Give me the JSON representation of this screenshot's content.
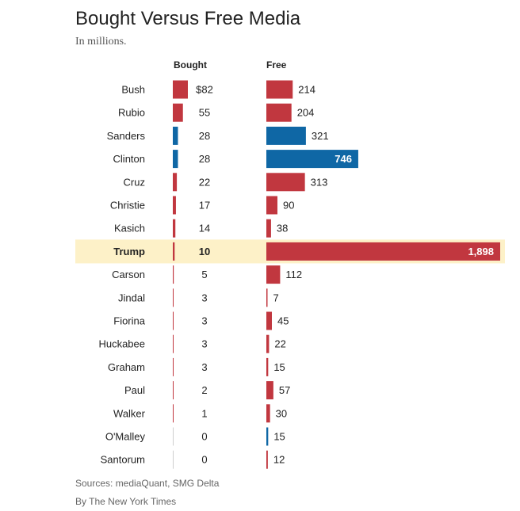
{
  "title": "Bought Versus Free Media",
  "subtitle": "In millions.",
  "footer": {
    "sources": "Sources: mediaQuant, SMG Delta",
    "byline": "By The New York Times"
  },
  "colors": {
    "republican": "#c1373f",
    "democrat": "#0f67a5",
    "highlight": "#fdf1c8"
  },
  "chart_data": {
    "type": "bar",
    "highlight": "Trump",
    "column_labels": {
      "bought": "Bought",
      "free": "Free"
    },
    "categories": [
      "Bush",
      "Rubio",
      "Sanders",
      "Clinton",
      "Cruz",
      "Christie",
      "Kasich",
      "Trump",
      "Carson",
      "Jindal",
      "Fiorina",
      "Huckabee",
      "Graham",
      "Paul",
      "Walker",
      "O'Malley",
      "Santorum"
    ],
    "party": [
      "R",
      "R",
      "D",
      "D",
      "R",
      "R",
      "R",
      "R",
      "R",
      "R",
      "R",
      "R",
      "R",
      "R",
      "R",
      "D",
      "R"
    ],
    "series": [
      {
        "name": "Bought",
        "values": [
          82,
          55,
          28,
          28,
          22,
          17,
          14,
          10,
          5,
          3,
          3,
          3,
          3,
          2,
          1,
          0,
          0
        ],
        "labels": [
          "$82",
          "55",
          "28",
          "28",
          "22",
          "17",
          "14",
          "10",
          "5",
          "3",
          "3",
          "3",
          "3",
          "2",
          "1",
          "0",
          "0"
        ]
      },
      {
        "name": "Free",
        "values": [
          214,
          204,
          321,
          746,
          313,
          90,
          38,
          1898,
          112,
          7,
          45,
          22,
          15,
          57,
          30,
          15,
          12
        ],
        "labels": [
          "214",
          "204",
          "321",
          "746",
          "313",
          "90",
          "38",
          "1,898",
          "112",
          "7",
          "45",
          "22",
          "15",
          "57",
          "30",
          "15",
          "12"
        ]
      }
    ]
  }
}
